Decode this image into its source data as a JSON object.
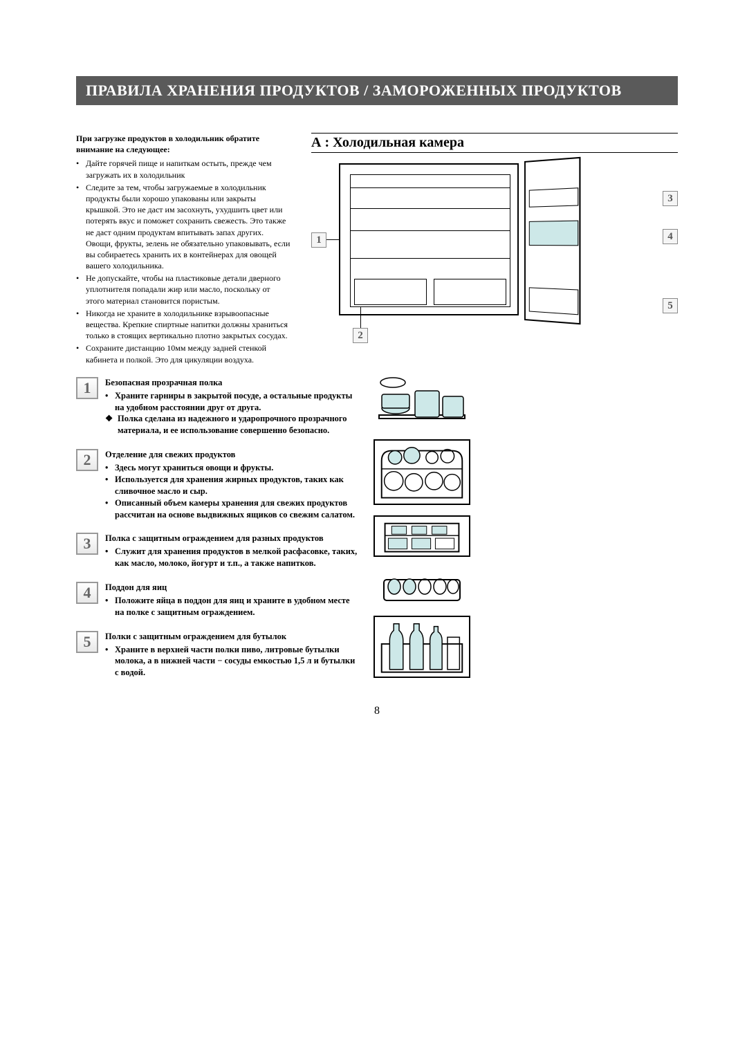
{
  "header_title": "ПРАВИЛА ХРАНЕНИЯ ПРОДУКТОВ / ЗАМОРОЖЕННЫХ ПРОДУКТОВ",
  "intro": {
    "lead": "При загрузке продуктов в холодильник обратите внимание на следующее:",
    "bullets": [
      "Дайте горячей пище и напиткам остыть, прежде чем загружать их в холодильник",
      "Следите за тем, чтобы загружаемые в холодильник продукты были хорошо упакованы или закрыты крышкой. Это не даст им засохнуть, ухудшить цвет или потерять вкус и поможет сохранить свежесть. Это также не даст одним продуктам впитывать запах других. Овощи, фрукты, зелень не обязательно упаковывать, если вы собираетесь хранить их в контейнерах для овощей вашего холодильника.",
      "Не допускайте, чтобы на пластиковые детали дверного уплотнителя попадали жир или масло, поскольку от этого материал становится пористым.",
      "Никогда не храните в холодильнике взрывоопасные вещества.   Крепкие спиртные напитки должны храниться только в стоящих вертикально плотно закрытых сосудах.",
      "Сохраните дистанцию 10мм между задней стенкой кабинета и полкой. Это для цикуляции воздуха."
    ]
  },
  "section_a_title": "А : Холодильная камера",
  "callouts": {
    "c1": "1",
    "c2": "2",
    "c3": "3",
    "c4": "4",
    "c5": "5"
  },
  "items": [
    {
      "num": "1",
      "title": "Безопасная прозрачная полка",
      "bullets": [
        "Храните гарниры в закрытой посуде, а остальные продукты на удобном расстоянии друг от друга."
      ],
      "special": "Полка сделана из надежного и ударопрочного прозрачного материала, и ее использование совершенно безопасно."
    },
    {
      "num": "2",
      "title": "Отделение для свежих продуктов",
      "bullets": [
        "Здесь могут храниться овощи и фрукты.",
        "Используется для хранения жирных продуктов, таких как сливочное масло и сыр.",
        "Описанный объем камеры хранения для свежих продуктов рассчитан на основе выдвижных ящиков со свежим салатом."
      ]
    },
    {
      "num": "3",
      "title": "Полка с защитным ограждением для разных продуктов",
      "bullets": [
        "Служит для хранения продуктов в мелкой расфасовке, таких, как масло, молоко, йогурт и т.п., а также напитков."
      ]
    },
    {
      "num": "4",
      "title": "Поддон для яиц",
      "bullets": [
        "Положите яйца в поддон для яиц и храните в удобном месте на полке с защитным ограждением."
      ]
    },
    {
      "num": "5",
      "title": "Полки с защитным ограждением для бутылок",
      "bullets": [
        "Храните в верхней части полки пиво, литровые бутылки молока, а в нижней части − сосуды емкостью 1,5 л и бутылки с водой."
      ]
    }
  ],
  "page_number": "8"
}
